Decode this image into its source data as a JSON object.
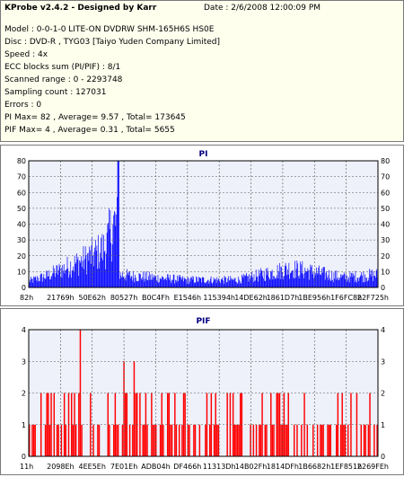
{
  "info": {
    "title": "KProbe v2.4.2 - Designed by Karr",
    "date": "Date : 2/6/2008 12:00:09 PM",
    "lines": [
      "Model : 0-0-1-0 LITE-ON DVDRW SHM-165H6S HS0E",
      "Disc : DVD-R , TYG03 [Taiyo Yuden Company Limited]",
      "Speed : 4x",
      "ECC blocks sum (PI/PIF) : 8/1",
      "Scanned range : 0 - 2293748",
      "Sampling count : 127031",
      "Errors : 0",
      "PI Max= 82 , Average= 9.57 , Total= 173645",
      "PIF Max= 4 , Average= 0.31 , Total= 5655"
    ]
  },
  "colors": {
    "series": "#0000ff",
    "pif": "#ff0000",
    "plotbg": "#eef0fa",
    "grid": "#555555"
  },
  "chart_data": [
    {
      "type": "bar",
      "title": "PI",
      "ylim": [
        0,
        80
      ],
      "yticks": [
        0,
        10,
        20,
        30,
        40,
        50,
        60,
        70,
        80
      ],
      "xticks": [
        "82h",
        "21769h",
        "50E62h",
        "80527h",
        "B0C4Fh",
        "E1546h",
        "115394h",
        "14DE62h",
        "1861D7h",
        "1BE956h",
        "1F6FC8h",
        "22F725h"
      ],
      "grid": "dashed",
      "max": 82,
      "profile": [
        {
          "x": 0.0,
          "y": 5
        },
        {
          "x": 0.05,
          "y": 9
        },
        {
          "x": 0.1,
          "y": 15
        },
        {
          "x": 0.16,
          "y": 22
        },
        {
          "x": 0.2,
          "y": 28
        },
        {
          "x": 0.22,
          "y": 32
        },
        {
          "x": 0.235,
          "y": 45
        },
        {
          "x": 0.245,
          "y": 50
        },
        {
          "x": 0.255,
          "y": 48
        },
        {
          "x": 0.26,
          "y": 10
        },
        {
          "x": 0.3,
          "y": 9
        },
        {
          "x": 0.45,
          "y": 6
        },
        {
          "x": 0.6,
          "y": 6
        },
        {
          "x": 0.7,
          "y": 12
        },
        {
          "x": 0.75,
          "y": 15
        },
        {
          "x": 0.8,
          "y": 13
        },
        {
          "x": 0.9,
          "y": 8
        },
        {
          "x": 1.0,
          "y": 10
        }
      ]
    },
    {
      "type": "bar",
      "title": "PIF",
      "ylim": [
        0,
        4
      ],
      "yticks": [
        0,
        1,
        2,
        3,
        4
      ],
      "xticks": [
        "11h",
        "2098Eh",
        "4EE5Eh",
        "7E01Eh",
        "ADB04h",
        "DF466h",
        "11313Dh",
        "14B02Fh",
        "1814DFh",
        "1B6682h",
        "1EF851h",
        "2269FEh"
      ],
      "grid": "dashed",
      "max": 4
    }
  ]
}
